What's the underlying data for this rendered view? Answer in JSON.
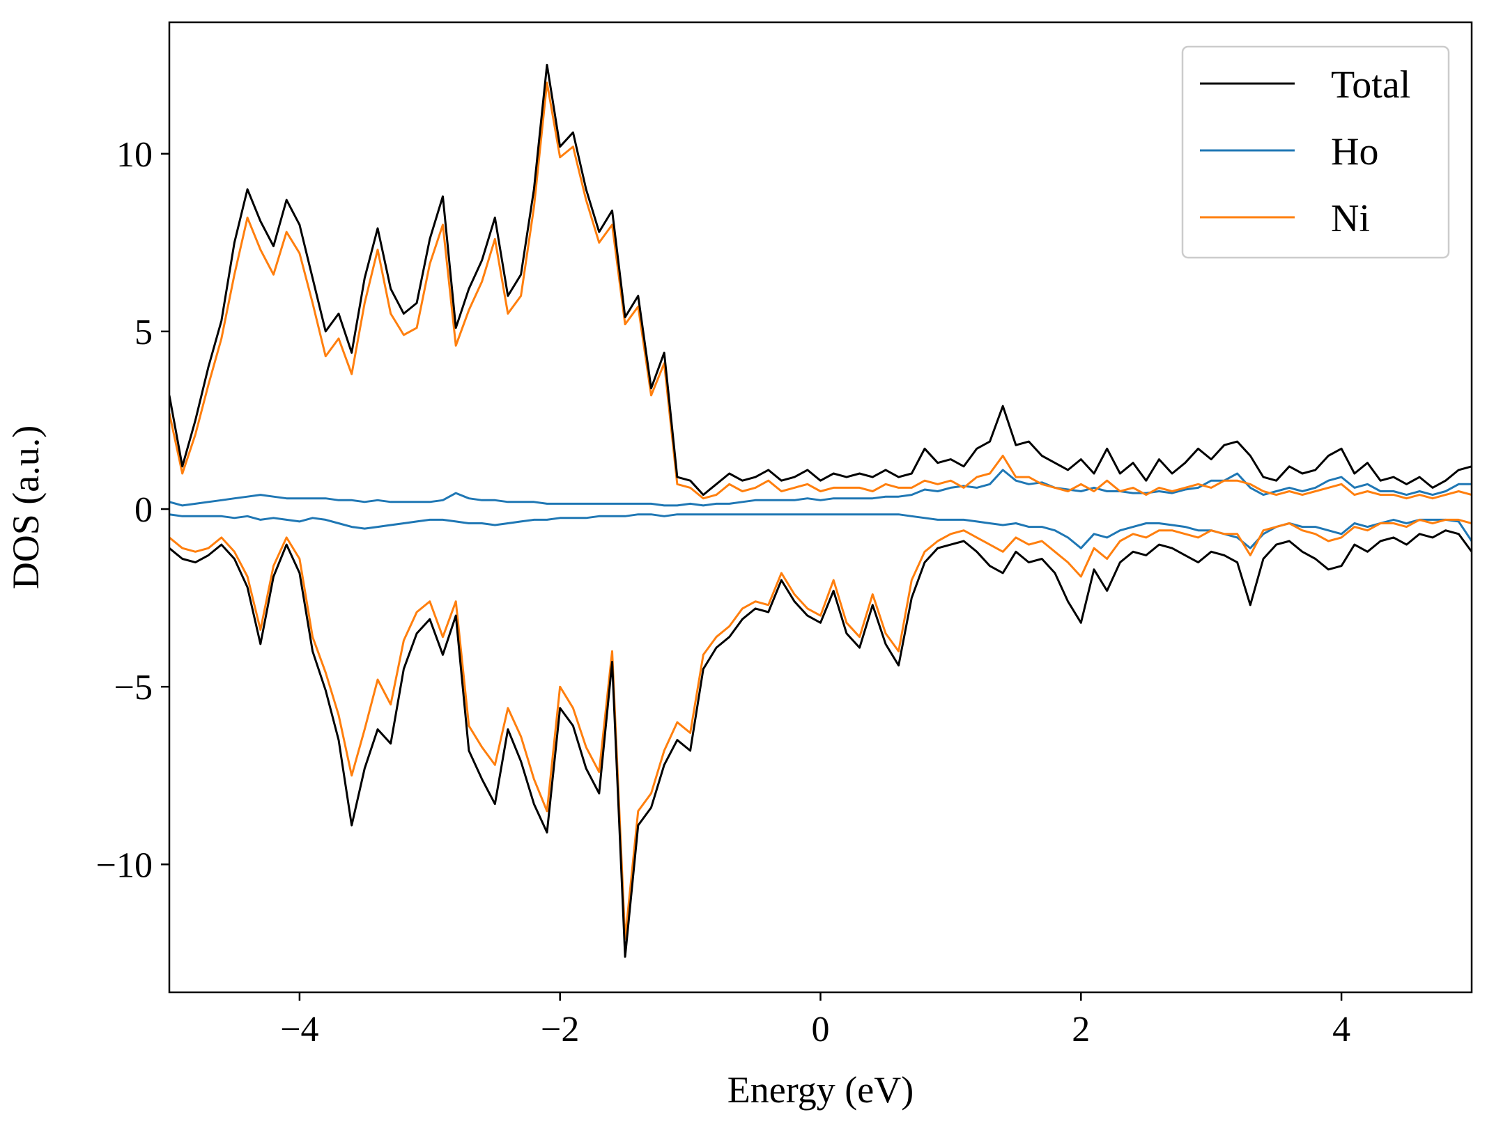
{
  "chart_data": {
    "type": "line",
    "title": "",
    "xlabel": "Energy (eV)",
    "ylabel": "DOS (a.u.)",
    "xlim": [
      -5,
      5
    ],
    "ylim": [
      -13.6,
      13.7
    ],
    "xticks": [
      -4,
      -2,
      0,
      2,
      4
    ],
    "xtick_labels": [
      "−4",
      "−2",
      "0",
      "2",
      "4"
    ],
    "yticks": [
      -10,
      -5,
      0,
      5,
      10
    ],
    "ytick_labels": [
      "−10",
      "−5",
      "0",
      "5",
      "10"
    ],
    "grid": false,
    "legend_position": "top-right",
    "legend": [
      "Total",
      "Ho",
      "Ni"
    ],
    "series": [
      {
        "name": "Total",
        "color": "#000000",
        "x": [
          -5.0,
          -4.9,
          -4.8,
          -4.7,
          -4.6,
          -4.5,
          -4.4,
          -4.3,
          -4.2,
          -4.1,
          -4.0,
          -3.9,
          -3.8,
          -3.7,
          -3.6,
          -3.5,
          -3.4,
          -3.3,
          -3.2,
          -3.1,
          -3.0,
          -2.9,
          -2.8,
          -2.7,
          -2.6,
          -2.5,
          -2.4,
          -2.3,
          -2.2,
          -2.1,
          -2.0,
          -1.9,
          -1.8,
          -1.7,
          -1.6,
          -1.5,
          -1.4,
          -1.3,
          -1.2,
          -1.1,
          -1.0,
          -0.9,
          -0.8,
          -0.7,
          -0.6,
          -0.5,
          -0.4,
          -0.3,
          -0.2,
          -0.1,
          0.0,
          0.1,
          0.2,
          0.3,
          0.4,
          0.5,
          0.6,
          0.7,
          0.8,
          0.9,
          1.0,
          1.1,
          1.2,
          1.3,
          1.4,
          1.5,
          1.6,
          1.7,
          1.8,
          1.9,
          2.0,
          2.1,
          2.2,
          2.3,
          2.4,
          2.5,
          2.6,
          2.7,
          2.8,
          2.9,
          3.0,
          3.1,
          3.2,
          3.3,
          3.4,
          3.5,
          3.6,
          3.7,
          3.8,
          3.9,
          4.0,
          4.1,
          4.2,
          4.3,
          4.4,
          4.5,
          4.6,
          4.7,
          4.8,
          4.9,
          5.0
        ],
        "up": [
          3.2,
          1.2,
          2.5,
          4.0,
          5.3,
          7.5,
          9.0,
          8.1,
          7.4,
          8.7,
          8.0,
          6.5,
          5.0,
          5.5,
          4.4,
          6.5,
          7.9,
          6.2,
          5.5,
          5.8,
          7.6,
          8.8,
          5.1,
          6.2,
          7.0,
          8.2,
          6.0,
          6.6,
          9.0,
          12.5,
          10.2,
          10.6,
          9.0,
          7.8,
          8.4,
          5.4,
          6.0,
          3.4,
          4.4,
          0.9,
          0.8,
          0.4,
          0.7,
          1.0,
          0.8,
          0.9,
          1.1,
          0.8,
          0.9,
          1.1,
          0.8,
          1.0,
          0.9,
          1.0,
          0.9,
          1.1,
          0.9,
          1.0,
          1.7,
          1.3,
          1.4,
          1.2,
          1.7,
          1.9,
          2.9,
          1.8,
          1.9,
          1.5,
          1.3,
          1.1,
          1.4,
          1.0,
          1.7,
          1.0,
          1.3,
          0.8,
          1.4,
          1.0,
          1.3,
          1.7,
          1.4,
          1.8,
          1.9,
          1.5,
          0.9,
          0.8,
          1.2,
          1.0,
          1.1,
          1.5,
          1.7,
          1.0,
          1.3,
          0.8,
          0.9,
          0.7,
          0.9,
          0.6,
          0.8,
          1.1,
          1.2
        ],
        "down": [
          -1.1,
          -1.4,
          -1.5,
          -1.3,
          -1.0,
          -1.4,
          -2.2,
          -3.8,
          -1.9,
          -1.0,
          -1.8,
          -4.0,
          -5.1,
          -6.5,
          -8.9,
          -7.3,
          -6.2,
          -6.6,
          -4.5,
          -3.5,
          -3.1,
          -4.1,
          -3.0,
          -6.8,
          -7.6,
          -8.3,
          -6.2,
          -7.1,
          -8.3,
          -9.1,
          -5.6,
          -6.1,
          -7.3,
          -8.0,
          -4.3,
          -12.6,
          -8.9,
          -8.4,
          -7.2,
          -6.5,
          -6.8,
          -4.5,
          -3.9,
          -3.6,
          -3.1,
          -2.8,
          -2.9,
          -2.0,
          -2.6,
          -3.0,
          -3.2,
          -2.3,
          -3.5,
          -3.9,
          -2.7,
          -3.8,
          -4.4,
          -2.5,
          -1.5,
          -1.1,
          -1.0,
          -0.9,
          -1.2,
          -1.6,
          -1.8,
          -1.2,
          -1.5,
          -1.4,
          -1.8,
          -2.6,
          -3.2,
          -1.7,
          -2.3,
          -1.5,
          -1.2,
          -1.3,
          -1.0,
          -1.1,
          -1.3,
          -1.5,
          -1.2,
          -1.3,
          -1.5,
          -2.7,
          -1.4,
          -1.0,
          -0.9,
          -1.2,
          -1.4,
          -1.7,
          -1.6,
          -1.0,
          -1.2,
          -0.9,
          -0.8,
          -1.0,
          -0.7,
          -0.8,
          -0.6,
          -0.7,
          -1.2
        ]
      },
      {
        "name": "Ho",
        "color": "#1f77b4",
        "x": [
          -5.0,
          -4.9,
          -4.8,
          -4.7,
          -4.6,
          -4.5,
          -4.4,
          -4.3,
          -4.2,
          -4.1,
          -4.0,
          -3.9,
          -3.8,
          -3.7,
          -3.6,
          -3.5,
          -3.4,
          -3.3,
          -3.2,
          -3.1,
          -3.0,
          -2.9,
          -2.8,
          -2.7,
          -2.6,
          -2.5,
          -2.4,
          -2.3,
          -2.2,
          -2.1,
          -2.0,
          -1.9,
          -1.8,
          -1.7,
          -1.6,
          -1.5,
          -1.4,
          -1.3,
          -1.2,
          -1.1,
          -1.0,
          -0.9,
          -0.8,
          -0.7,
          -0.6,
          -0.5,
          -0.4,
          -0.3,
          -0.2,
          -0.1,
          0.0,
          0.1,
          0.2,
          0.3,
          0.4,
          0.5,
          0.6,
          0.7,
          0.8,
          0.9,
          1.0,
          1.1,
          1.2,
          1.3,
          1.4,
          1.5,
          1.6,
          1.7,
          1.8,
          1.9,
          2.0,
          2.1,
          2.2,
          2.3,
          2.4,
          2.5,
          2.6,
          2.7,
          2.8,
          2.9,
          3.0,
          3.1,
          3.2,
          3.3,
          3.4,
          3.5,
          3.6,
          3.7,
          3.8,
          3.9,
          4.0,
          4.1,
          4.2,
          4.3,
          4.4,
          4.5,
          4.6,
          4.7,
          4.8,
          4.9,
          5.0
        ],
        "up": [
          0.2,
          0.1,
          0.15,
          0.2,
          0.25,
          0.3,
          0.35,
          0.4,
          0.35,
          0.3,
          0.3,
          0.3,
          0.3,
          0.25,
          0.25,
          0.2,
          0.25,
          0.2,
          0.2,
          0.2,
          0.2,
          0.25,
          0.45,
          0.3,
          0.25,
          0.25,
          0.2,
          0.2,
          0.2,
          0.15,
          0.15,
          0.15,
          0.15,
          0.15,
          0.15,
          0.15,
          0.15,
          0.15,
          0.1,
          0.1,
          0.15,
          0.1,
          0.15,
          0.15,
          0.2,
          0.25,
          0.25,
          0.25,
          0.25,
          0.3,
          0.25,
          0.3,
          0.3,
          0.3,
          0.3,
          0.35,
          0.35,
          0.4,
          0.55,
          0.5,
          0.6,
          0.65,
          0.6,
          0.7,
          1.1,
          0.8,
          0.7,
          0.75,
          0.6,
          0.55,
          0.5,
          0.6,
          0.5,
          0.5,
          0.45,
          0.45,
          0.5,
          0.45,
          0.55,
          0.6,
          0.8,
          0.8,
          1.0,
          0.6,
          0.4,
          0.5,
          0.6,
          0.5,
          0.6,
          0.8,
          0.9,
          0.6,
          0.7,
          0.5,
          0.5,
          0.4,
          0.5,
          0.4,
          0.5,
          0.7,
          0.7
        ],
        "down": [
          -0.15,
          -0.2,
          -0.2,
          -0.2,
          -0.2,
          -0.25,
          -0.2,
          -0.3,
          -0.25,
          -0.3,
          -0.35,
          -0.25,
          -0.3,
          -0.4,
          -0.5,
          -0.55,
          -0.5,
          -0.45,
          -0.4,
          -0.35,
          -0.3,
          -0.3,
          -0.35,
          -0.4,
          -0.4,
          -0.45,
          -0.4,
          -0.35,
          -0.3,
          -0.3,
          -0.25,
          -0.25,
          -0.25,
          -0.2,
          -0.2,
          -0.2,
          -0.15,
          -0.15,
          -0.2,
          -0.15,
          -0.15,
          -0.15,
          -0.15,
          -0.15,
          -0.15,
          -0.15,
          -0.15,
          -0.15,
          -0.15,
          -0.15,
          -0.15,
          -0.15,
          -0.15,
          -0.15,
          -0.15,
          -0.15,
          -0.15,
          -0.2,
          -0.25,
          -0.3,
          -0.3,
          -0.3,
          -0.35,
          -0.4,
          -0.45,
          -0.4,
          -0.5,
          -0.5,
          -0.6,
          -0.8,
          -1.1,
          -0.7,
          -0.8,
          -0.6,
          -0.5,
          -0.4,
          -0.4,
          -0.45,
          -0.5,
          -0.6,
          -0.6,
          -0.7,
          -0.8,
          -1.1,
          -0.7,
          -0.5,
          -0.4,
          -0.5,
          -0.5,
          -0.6,
          -0.7,
          -0.4,
          -0.5,
          -0.4,
          -0.3,
          -0.4,
          -0.3,
          -0.3,
          -0.3,
          -0.35,
          -0.9
        ]
      },
      {
        "name": "Ni",
        "color": "#ff7f0e",
        "x": [
          -5.0,
          -4.9,
          -4.8,
          -4.7,
          -4.6,
          -4.5,
          -4.4,
          -4.3,
          -4.2,
          -4.1,
          -4.0,
          -3.9,
          -3.8,
          -3.7,
          -3.6,
          -3.5,
          -3.4,
          -3.3,
          -3.2,
          -3.1,
          -3.0,
          -2.9,
          -2.8,
          -2.7,
          -2.6,
          -2.5,
          -2.4,
          -2.3,
          -2.2,
          -2.1,
          -2.0,
          -1.9,
          -1.8,
          -1.7,
          -1.6,
          -1.5,
          -1.4,
          -1.3,
          -1.2,
          -1.1,
          -1.0,
          -0.9,
          -0.8,
          -0.7,
          -0.6,
          -0.5,
          -0.4,
          -0.3,
          -0.2,
          -0.1,
          0.0,
          0.1,
          0.2,
          0.3,
          0.4,
          0.5,
          0.6,
          0.7,
          0.8,
          0.9,
          1.0,
          1.1,
          1.2,
          1.3,
          1.4,
          1.5,
          1.6,
          1.7,
          1.8,
          1.9,
          2.0,
          2.1,
          2.2,
          2.3,
          2.4,
          2.5,
          2.6,
          2.7,
          2.8,
          2.9,
          3.0,
          3.1,
          3.2,
          3.3,
          3.4,
          3.5,
          3.6,
          3.7,
          3.8,
          3.9,
          4.0,
          4.1,
          4.2,
          4.3,
          4.4,
          4.5,
          4.6,
          4.7,
          4.8,
          4.9,
          5.0
        ],
        "up": [
          2.7,
          1.0,
          2.1,
          3.5,
          4.8,
          6.6,
          8.2,
          7.3,
          6.6,
          7.8,
          7.2,
          5.8,
          4.3,
          4.8,
          3.8,
          5.8,
          7.3,
          5.5,
          4.9,
          5.1,
          6.9,
          8.0,
          4.6,
          5.6,
          6.4,
          7.6,
          5.5,
          6.0,
          8.5,
          12.0,
          9.9,
          10.2,
          8.7,
          7.5,
          8.0,
          5.2,
          5.7,
          3.2,
          4.1,
          0.7,
          0.6,
          0.3,
          0.4,
          0.7,
          0.5,
          0.6,
          0.8,
          0.5,
          0.6,
          0.7,
          0.5,
          0.6,
          0.6,
          0.6,
          0.5,
          0.7,
          0.6,
          0.6,
          0.8,
          0.7,
          0.8,
          0.6,
          0.9,
          1.0,
          1.5,
          0.9,
          0.9,
          0.7,
          0.6,
          0.5,
          0.7,
          0.5,
          0.8,
          0.5,
          0.6,
          0.4,
          0.6,
          0.5,
          0.6,
          0.7,
          0.6,
          0.8,
          0.8,
          0.7,
          0.5,
          0.4,
          0.5,
          0.4,
          0.5,
          0.6,
          0.7,
          0.4,
          0.5,
          0.4,
          0.4,
          0.3,
          0.4,
          0.3,
          0.4,
          0.5,
          0.4
        ],
        "down": [
          -0.8,
          -1.1,
          -1.2,
          -1.1,
          -0.8,
          -1.2,
          -1.9,
          -3.4,
          -1.6,
          -0.8,
          -1.4,
          -3.6,
          -4.6,
          -5.8,
          -7.5,
          -6.2,
          -4.8,
          -5.5,
          -3.7,
          -2.9,
          -2.6,
          -3.6,
          -2.6,
          -6.1,
          -6.7,
          -7.2,
          -5.6,
          -6.4,
          -7.6,
          -8.5,
          -5.0,
          -5.6,
          -6.7,
          -7.4,
          -4.0,
          -12.1,
          -8.5,
          -8.0,
          -6.8,
          -6.0,
          -6.3,
          -4.1,
          -3.6,
          -3.3,
          -2.8,
          -2.6,
          -2.7,
          -1.8,
          -2.4,
          -2.8,
          -3.0,
          -2.0,
          -3.2,
          -3.6,
          -2.4,
          -3.5,
          -4.0,
          -2.0,
          -1.2,
          -0.9,
          -0.7,
          -0.6,
          -0.8,
          -1.0,
          -1.2,
          -0.8,
          -1.0,
          -0.9,
          -1.2,
          -1.5,
          -1.9,
          -1.1,
          -1.4,
          -0.9,
          -0.7,
          -0.8,
          -0.6,
          -0.6,
          -0.7,
          -0.8,
          -0.6,
          -0.7,
          -0.7,
          -1.3,
          -0.6,
          -0.5,
          -0.4,
          -0.6,
          -0.7,
          -0.9,
          -0.8,
          -0.5,
          -0.6,
          -0.4,
          -0.4,
          -0.5,
          -0.3,
          -0.4,
          -0.3,
          -0.3,
          -0.4
        ]
      }
    ]
  }
}
